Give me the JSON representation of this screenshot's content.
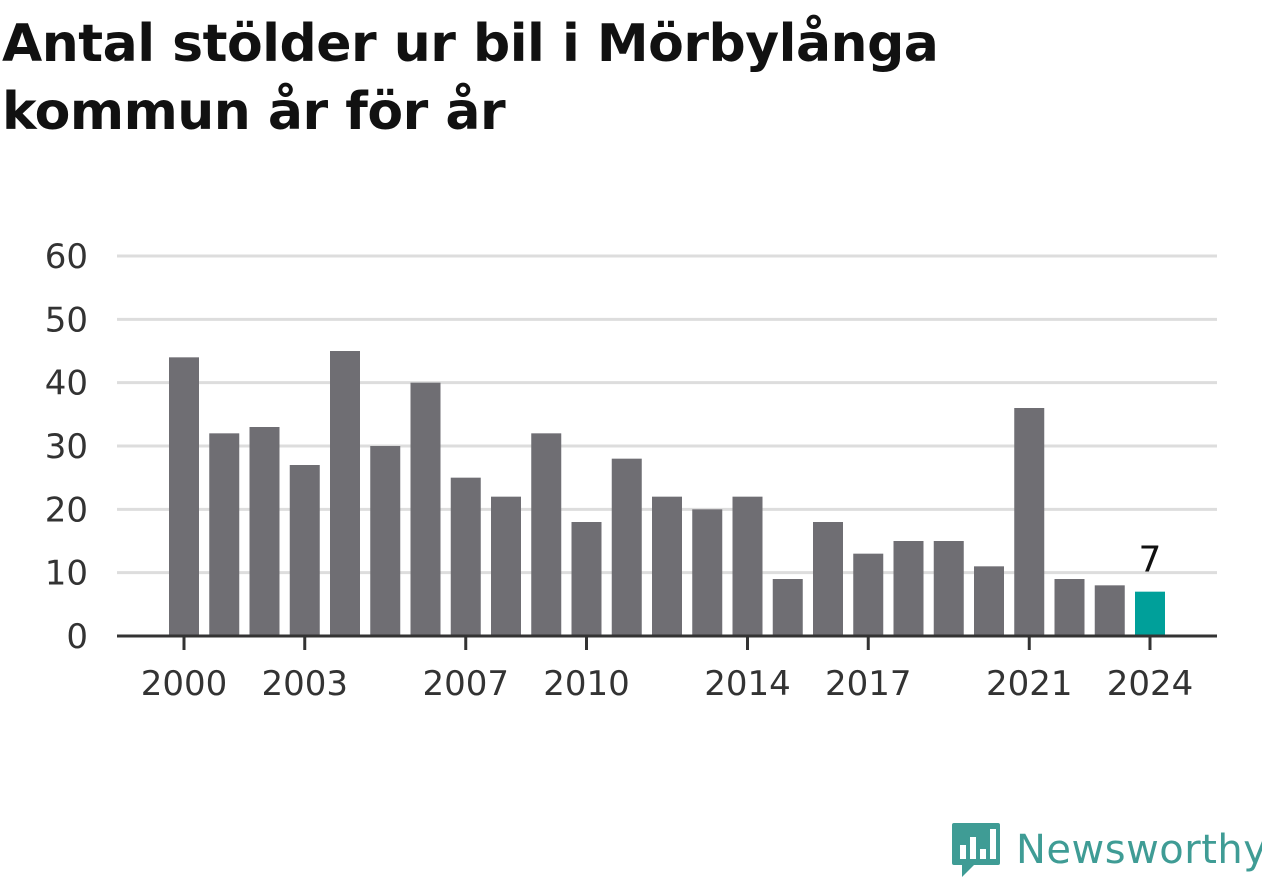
{
  "title": "Antal stölder ur bil i Mörbylånga kommun år för år",
  "brand": {
    "name": "Newsworthy",
    "logo_icon": "newsworthy-chart-bubble-icon",
    "color": "#3f9c95"
  },
  "chart_data": {
    "type": "bar",
    "categories": [
      "2000",
      "2001",
      "2002",
      "2003",
      "2004",
      "2005",
      "2006",
      "2007",
      "2008",
      "2009",
      "2010",
      "2011",
      "2012",
      "2013",
      "2014",
      "2015",
      "2016",
      "2017",
      "2018",
      "2019",
      "2020",
      "2021",
      "2022",
      "2023",
      "2024"
    ],
    "values": [
      44,
      32,
      33,
      27,
      45,
      30,
      40,
      25,
      22,
      32,
      18,
      28,
      22,
      20,
      22,
      9,
      18,
      13,
      15,
      15,
      11,
      36,
      9,
      8,
      7
    ],
    "x_tick_labels": [
      "2000",
      "2003",
      "2007",
      "2010",
      "2014",
      "2017",
      "2021",
      "2024"
    ],
    "y_ticks": [
      0,
      10,
      20,
      30,
      40,
      50,
      60
    ],
    "ylim": [
      0,
      60
    ],
    "highlight": {
      "category": "2024",
      "label": "7"
    },
    "colors": {
      "bar": "#6f6e73",
      "highlight": "#00a09a",
      "grid": "#dddddd",
      "axis": "#333333",
      "text": "#333333"
    },
    "grid": true
  }
}
